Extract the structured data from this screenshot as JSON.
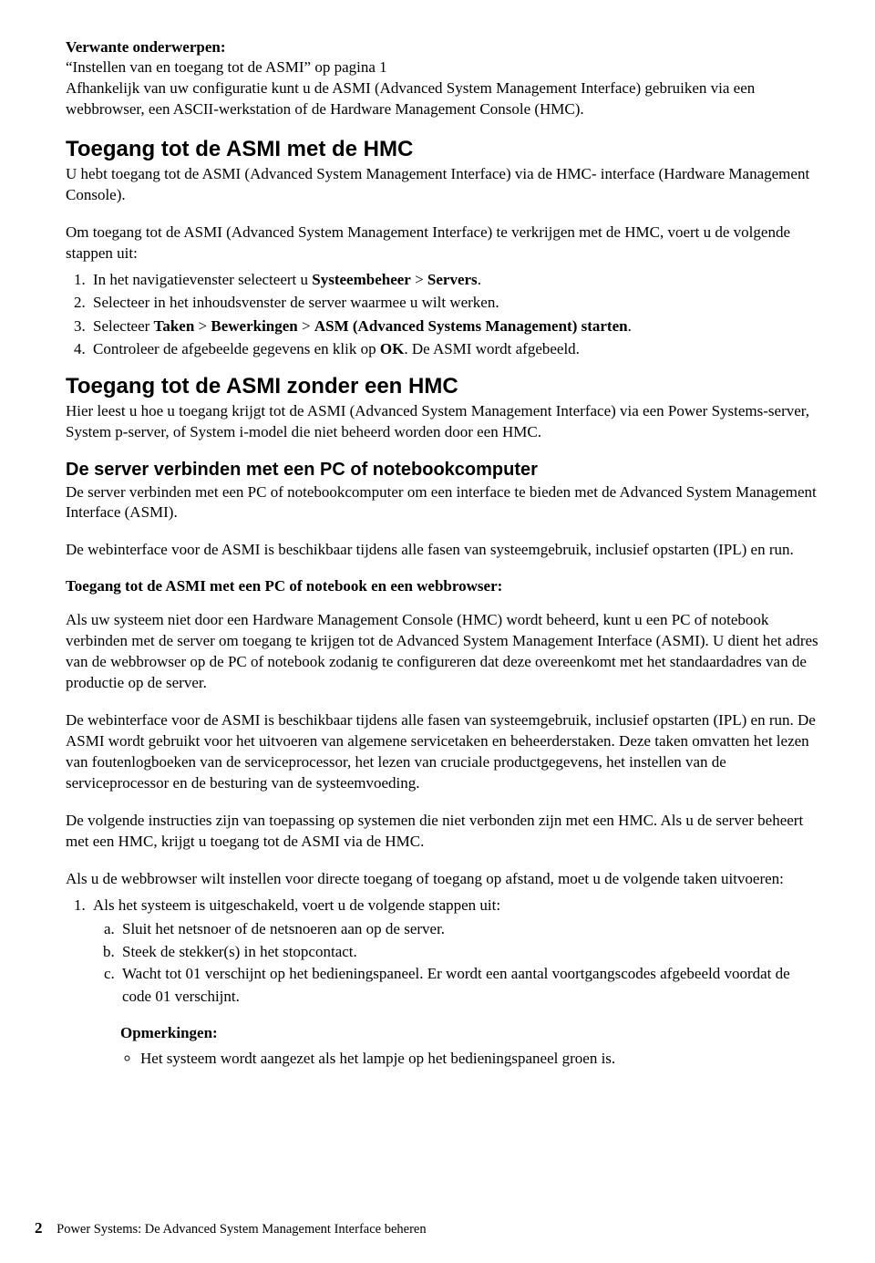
{
  "related": {
    "heading": "Verwante onderwerpen:",
    "link": "“Instellen van en toegang tot de ASMI” op pagina 1",
    "desc": "Afhankelijk van uw configuratie kunt u de ASMI (Advanced System Management Interface) gebruiken via een webbrowser, een ASCII-werkstation of de Hardware Management Console (HMC)."
  },
  "sec1": {
    "title": "Toegang tot de ASMI met de HMC",
    "intro": "U hebt toegang tot de ASMI (Advanced System Management Interface) via de HMC- interface (Hardware Management Console).",
    "lead": "Om toegang tot de ASMI (Advanced System Management Interface) te verkrijgen met de HMC, voert u de volgende stappen uit:",
    "step1_pre": "In het navigatievenster selecteert u ",
    "step1_b1": "Systeembeheer",
    "step1_gt": " > ",
    "step1_b2": "Servers",
    "step1_post": ".",
    "step2": "Selecteer in het inhoudsvenster de server waarmee u wilt werken.",
    "step3_pre": "Selecteer ",
    "step3_b1": "Taken",
    "step3_g1": " > ",
    "step3_b2": "Bewerkingen",
    "step3_g2": " > ",
    "step3_b3": "ASM (Advanced Systems Management) starten",
    "step3_post": ".",
    "step4_pre": "Controleer de afgebeelde gegevens en klik op ",
    "step4_b1": "OK",
    "step4_post": ". De ASMI wordt afgebeeld."
  },
  "sec2": {
    "title": "Toegang tot de ASMI zonder een HMC",
    "intro": "Hier leest u hoe u toegang krijgt tot de ASMI (Advanced System Management Interface) via een Power Systems-server, System p-server, of System i-model die niet beheerd worden door een HMC."
  },
  "sec3": {
    "title": "De server verbinden met een PC of notebookcomputer",
    "p1": "De server verbinden met een PC of notebookcomputer om een interface te bieden met de Advanced System Management Interface (ASMI).",
    "p2": "De webinterface voor de ASMI is beschikbaar tijdens alle fasen van systeemgebruik, inclusief opstarten (IPL) en run.",
    "subhead": "Toegang tot de ASMI met een PC of notebook en een webbrowser:",
    "p3": "Als uw systeem niet door een Hardware Management Console (HMC) wordt beheerd, kunt u een PC of notebook verbinden met de server om toegang te krijgen tot de Advanced System Management Interface (ASMI). U dient het adres van de webbrowser op de PC of notebook zodanig te configureren dat deze overeenkomt met het standaardadres van de productie op de server.",
    "p4": "De webinterface voor de ASMI is beschikbaar tijdens alle fasen van systeemgebruik, inclusief opstarten (IPL) en run. De ASMI wordt gebruikt voor het uitvoeren van algemene servicetaken en beheerderstaken. Deze taken omvatten het lezen van foutenlogboeken van de serviceprocessor, het lezen van cruciale productgegevens, het instellen van de serviceprocessor en de besturing van de systeemvoeding.",
    "p5": "De volgende instructies zijn van toepassing op systemen die niet verbonden zijn met een HMC. Als u de server beheert met een HMC, krijgt u toegang tot de ASMI via de HMC.",
    "p6": "Als u de webbrowser wilt instellen voor directe toegang of toegang op afstand, moet u de volgende taken uitvoeren:",
    "step1": "Als het systeem is uitgeschakeld, voert u de volgende stappen uit:",
    "sa": "Sluit het netsnoer of de netsnoeren aan op de server.",
    "sb": "Steek de stekker(s) in het stopcontact.",
    "sc": "Wacht tot 01 verschijnt op het bedieningspaneel. Er wordt een aantal voortgangscodes afgebeeld voordat de code 01 verschijnt.",
    "notes_heading": "Opmerkingen:",
    "note1": "Het systeem wordt aangezet als het lampje op het bedieningspaneel groen is."
  },
  "footer": {
    "page": "2",
    "text": "Power Systems: De Advanced System Management Interface beheren"
  }
}
